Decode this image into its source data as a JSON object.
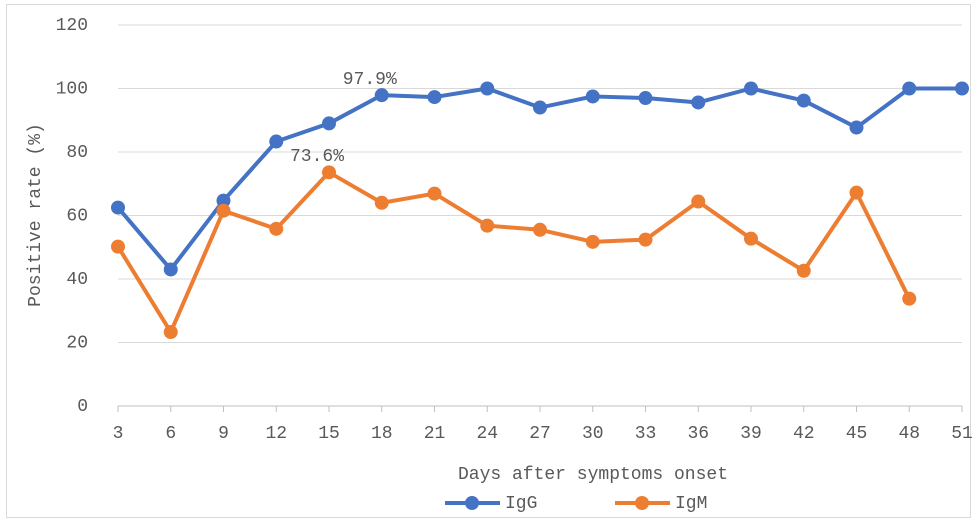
{
  "chart_data": {
    "type": "line",
    "x": [
      3,
      6,
      9,
      12,
      15,
      18,
      21,
      24,
      27,
      30,
      33,
      36,
      39,
      42,
      45,
      48,
      51
    ],
    "xlim": [
      3,
      51
    ],
    "xticks": [
      3,
      6,
      9,
      12,
      15,
      18,
      21,
      24,
      27,
      30,
      33,
      36,
      39,
      42,
      45,
      48,
      51
    ],
    "ylim": [
      0,
      120
    ],
    "yticks": [
      0,
      20,
      40,
      60,
      80,
      100,
      120
    ],
    "grid": true,
    "xlabel": "Days after symptoms onset",
    "ylabel": "Positive rate (%)",
    "legend": "bottom",
    "series": [
      {
        "name": "IgG",
        "color": "#4472c4",
        "values": [
          62.5,
          43,
          64.7,
          83.3,
          89,
          97.9,
          97.3,
          100,
          94,
          97.5,
          97,
          95.6,
          100,
          96.2,
          87.7,
          100,
          100
        ],
        "value_labels": [
          null,
          null,
          null,
          null,
          null,
          "97.9%",
          null,
          null,
          null,
          null,
          null,
          null,
          null,
          null,
          null,
          null,
          null
        ]
      },
      {
        "name": "IgM",
        "color": "#ed7d31",
        "values": [
          50.2,
          23.3,
          61.5,
          55.8,
          73.6,
          64,
          66.9,
          56.8,
          55.5,
          51.7,
          52.4,
          64.4,
          52.7,
          42.6,
          67.2,
          33.8,
          null
        ],
        "value_labels": [
          null,
          null,
          null,
          null,
          "73.6%",
          null,
          null,
          null,
          null,
          null,
          null,
          null,
          null,
          null,
          null,
          null,
          null
        ]
      }
    ]
  }
}
